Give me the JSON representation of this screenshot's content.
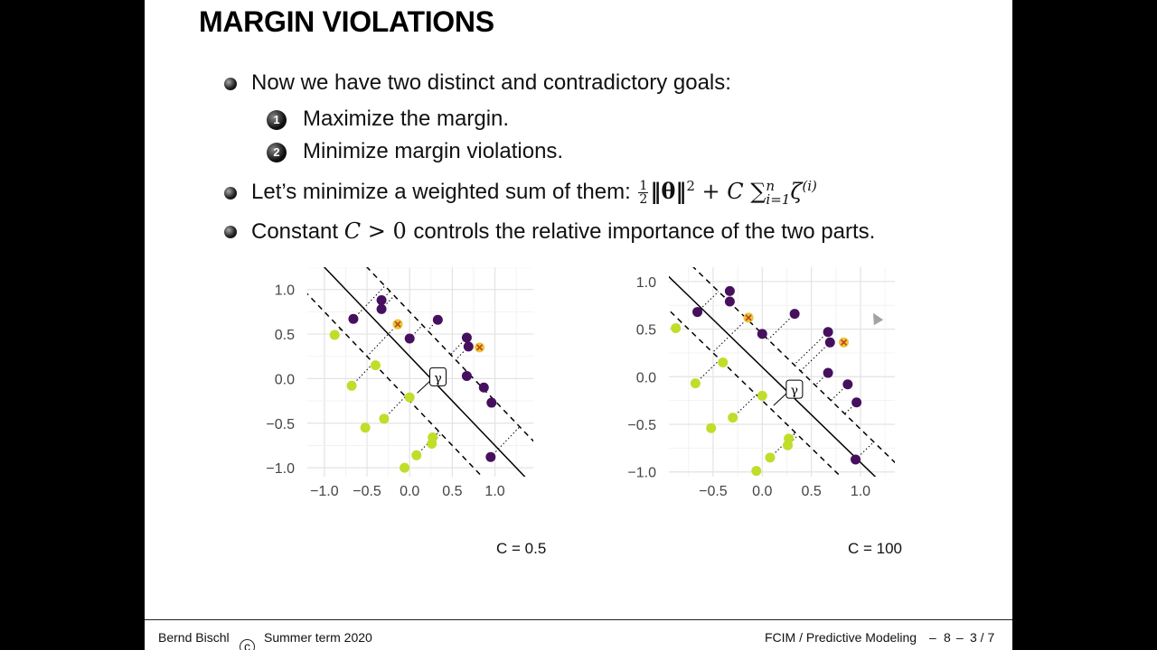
{
  "slide": {
    "title": "MARGIN VIOLATIONS",
    "bullets": [
      "Now we have two distinct and contradictory goals:",
      "Let’s minimize a weighted sum of them:",
      "Constant"
    ],
    "subitems": [
      {
        "num": "1",
        "text": "Maximize the margin."
      },
      {
        "num": "2",
        "text": "Minimize margin violations."
      }
    ],
    "formula": {
      "half_num": "1",
      "half_den": "2",
      "norm": "‖θ‖",
      "sq": "2",
      "plus_c": " + C ",
      "sum": "∑",
      "sum_top": "n",
      "sum_bottom": "i=1",
      "zeta": "ζ",
      "zeta_sup": "(i)"
    },
    "constant_c": "C",
    "constant_gt": " > 0 ",
    "constant_rest": "controls the relative importance of the two parts."
  },
  "chart_data": [
    {
      "type": "scatter",
      "caption": "C = 0.5",
      "gamma_label": "γ",
      "xlim": [
        -1.2,
        1.45
      ],
      "ylim": [
        -1.1,
        1.25
      ],
      "xticks": [
        -1.0,
        -0.5,
        0.0,
        0.5,
        1.0
      ],
      "yticks": [
        -1.0,
        -0.5,
        0.0,
        0.5,
        1.0
      ],
      "xtick_labels": [
        "−1.0",
        "−0.5",
        "0.0",
        "0.5",
        "1.0"
      ],
      "ytick_labels": [
        "1.0",
        "0.5",
        "0.0",
        "−0.5",
        "−1.0"
      ],
      "grid": true,
      "decision_line": {
        "w": [
          1,
          1
        ],
        "b": -0.25
      },
      "margin_width": 0.5,
      "class_pos": [
        [
          -0.33,
          0.88
        ],
        [
          -0.33,
          0.78
        ],
        [
          0.0,
          0.45
        ],
        [
          0.33,
          0.66
        ],
        [
          0.67,
          0.46
        ],
        [
          0.69,
          0.36
        ],
        [
          0.67,
          0.03
        ],
        [
          0.87,
          -0.1
        ],
        [
          0.96,
          -0.27
        ],
        [
          0.95,
          -0.88
        ],
        [
          -0.66,
          0.67
        ]
      ],
      "class_neg": [
        [
          -0.88,
          0.49
        ],
        [
          -0.68,
          -0.08
        ],
        [
          -0.4,
          0.15
        ],
        [
          -0.52,
          -0.55
        ],
        [
          -0.3,
          -0.45
        ],
        [
          0.0,
          -0.21
        ],
        [
          0.08,
          -0.86
        ],
        [
          -0.06,
          -1.0
        ],
        [
          0.26,
          -0.73
        ],
        [
          0.27,
          -0.66
        ],
        [
          -0.14,
          0.61
        ]
      ],
      "violators": [
        [
          -0.14,
          0.61
        ],
        [
          0.82,
          0.35
        ]
      ]
    },
    {
      "type": "scatter",
      "caption": "C = 100",
      "gamma_label": "γ",
      "xlim": [
        -0.95,
        1.35
      ],
      "ylim": [
        -1.05,
        1.15
      ],
      "xticks": [
        -0.5,
        0.0,
        0.5,
        1.0
      ],
      "yticks": [
        -1.0,
        -0.5,
        0.0,
        0.5,
        1.0
      ],
      "xtick_labels": [
        "−0.5",
        "0.0",
        "0.5",
        "1.0"
      ],
      "ytick_labels": [
        "1.0",
        "0.5",
        "0.0",
        "−0.5",
        "−1.0"
      ],
      "grid": true,
      "decision_line": {
        "w": [
          1,
          1
        ],
        "b": -0.1
      },
      "margin_width": 0.35,
      "class_pos": [
        [
          -0.33,
          0.9
        ],
        [
          -0.33,
          0.79
        ],
        [
          0.0,
          0.45
        ],
        [
          0.33,
          0.66
        ],
        [
          0.67,
          0.47
        ],
        [
          0.69,
          0.36
        ],
        [
          0.67,
          0.04
        ],
        [
          0.87,
          -0.08
        ],
        [
          0.96,
          -0.27
        ],
        [
          0.95,
          -0.87
        ],
        [
          -0.66,
          0.68
        ]
      ],
      "class_neg": [
        [
          -0.88,
          0.51
        ],
        [
          -0.68,
          -0.07
        ],
        [
          -0.4,
          0.15
        ],
        [
          -0.52,
          -0.54
        ],
        [
          -0.3,
          -0.43
        ],
        [
          0.0,
          -0.2
        ],
        [
          0.08,
          -0.85
        ],
        [
          -0.06,
          -0.99
        ],
        [
          0.26,
          -0.72
        ],
        [
          0.27,
          -0.65
        ],
        [
          -0.14,
          0.62
        ]
      ],
      "violators": [
        [
          -0.14,
          0.62
        ],
        [
          0.83,
          0.36
        ]
      ]
    }
  ],
  "footer": {
    "author": "Bernd Bischl",
    "copyright_symbol": "c",
    "term": "Summer term 2020",
    "course": "FCIM / Predictive Modeling",
    "chapter": "8",
    "page": "3 / 7"
  }
}
